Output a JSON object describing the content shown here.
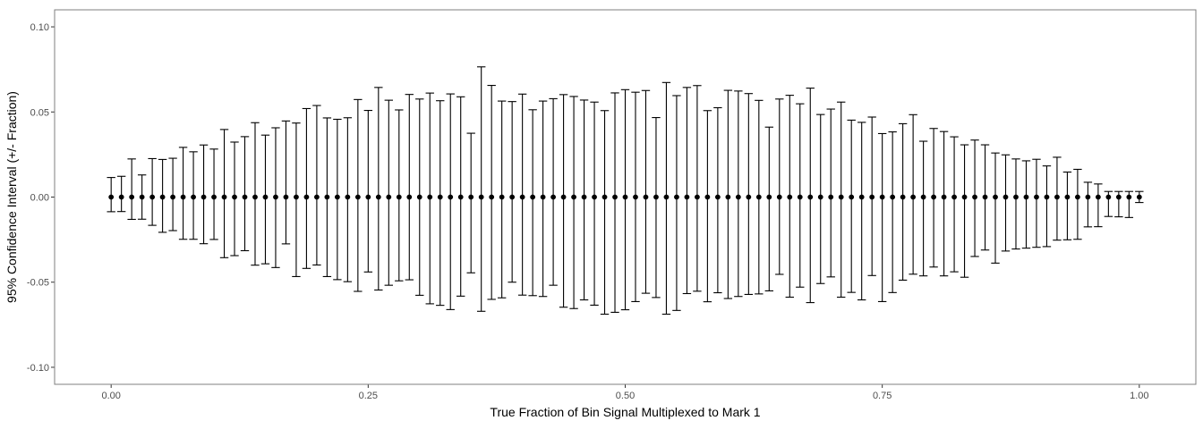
{
  "chart_data": {
    "type": "scatter",
    "title": "",
    "xlabel": "True Fraction of Bin Signal Multiplexed to Mark 1",
    "ylabel": "95% Confidence Interval (+/- Fraction)",
    "xlim": [
      -0.055,
      1.055
    ],
    "ylim": [
      -0.11,
      0.11
    ],
    "grid": false,
    "legend": "none",
    "x_ticks": [
      0.0,
      0.25,
      0.5,
      0.75,
      1.0
    ],
    "x_tick_labels": [
      "0.00",
      "0.25",
      "0.50",
      "0.75",
      "1.00"
    ],
    "y_ticks": [
      -0.1,
      -0.05,
      0.0,
      0.05,
      0.1
    ],
    "y_tick_labels": [
      "-0.10",
      "-0.05",
      "0.00",
      "0.05",
      "0.10"
    ],
    "colors": {
      "points": "#000000",
      "errorbars": "#000000",
      "panel_border": "#7f7f7f",
      "background": "#ffffff"
    },
    "x": [
      0.0,
      0.01,
      0.02,
      0.03,
      0.04,
      0.05,
      0.06,
      0.07,
      0.08,
      0.09,
      0.1,
      0.11,
      0.12,
      0.13,
      0.14,
      0.15,
      0.16,
      0.17,
      0.18,
      0.19,
      0.2,
      0.21,
      0.22,
      0.23,
      0.24,
      0.25,
      0.26,
      0.27,
      0.28,
      0.29,
      0.3,
      0.31,
      0.32,
      0.33,
      0.34,
      0.35,
      0.36,
      0.37,
      0.38,
      0.39,
      0.4,
      0.41,
      0.42,
      0.43,
      0.44,
      0.45,
      0.46,
      0.47,
      0.48,
      0.49,
      0.5,
      0.51,
      0.52,
      0.53,
      0.54,
      0.55,
      0.56,
      0.57,
      0.58,
      0.59,
      0.6,
      0.61,
      0.62,
      0.63,
      0.64,
      0.65,
      0.66,
      0.67,
      0.68,
      0.69,
      0.7,
      0.71,
      0.72,
      0.73,
      0.74,
      0.75,
      0.76,
      0.77,
      0.78,
      0.79,
      0.8,
      0.81,
      0.82,
      0.83,
      0.84,
      0.85,
      0.86,
      0.87,
      0.88,
      0.89,
      0.9,
      0.91,
      0.92,
      0.93,
      0.94,
      0.95,
      0.96,
      0.97,
      0.98,
      0.99,
      1.0
    ],
    "y": [
      0,
      0,
      0,
      0,
      0,
      0,
      0,
      0,
      0,
      0,
      0,
      0,
      0,
      0,
      0,
      0,
      0,
      0,
      0,
      0,
      0,
      0,
      0,
      0,
      0,
      0,
      0,
      0,
      0,
      0,
      0,
      0,
      0,
      0,
      0,
      0,
      0,
      0,
      0,
      0,
      0,
      0,
      0,
      0,
      0,
      0,
      0,
      0,
      0,
      0,
      0,
      0,
      0,
      0,
      0,
      0,
      0,
      0,
      0,
      0,
      0,
      0,
      0,
      0,
      0,
      0,
      0,
      0,
      0,
      0,
      0,
      0,
      0,
      0,
      0,
      0,
      0,
      0,
      0,
      0,
      0,
      0,
      0,
      0,
      0,
      0,
      0,
      0,
      0,
      0,
      0,
      0,
      0,
      0,
      0,
      0,
      0,
      0,
      0,
      0,
      0
    ],
    "ymax": [
      0.0115,
      0.0122,
      0.0224,
      0.013,
      0.0226,
      0.0221,
      0.0228,
      0.0292,
      0.0266,
      0.0306,
      0.0282,
      0.0397,
      0.0323,
      0.0355,
      0.0437,
      0.0364,
      0.0407,
      0.0447,
      0.0435,
      0.052,
      0.0538,
      0.0465,
      0.0457,
      0.0466,
      0.0573,
      0.0509,
      0.0644,
      0.0569,
      0.0512,
      0.0603,
      0.0576,
      0.0611,
      0.0566,
      0.0606,
      0.0589,
      0.0375,
      0.0765,
      0.0656,
      0.0564,
      0.0561,
      0.0605,
      0.0513,
      0.0564,
      0.0578,
      0.0602,
      0.0591,
      0.057,
      0.0558,
      0.0508,
      0.0612,
      0.0631,
      0.0616,
      0.0626,
      0.0467,
      0.0673,
      0.0596,
      0.0644,
      0.0655,
      0.0508,
      0.0525,
      0.0627,
      0.0623,
      0.0608,
      0.0568,
      0.0411,
      0.0576,
      0.0598,
      0.0548,
      0.064,
      0.0485,
      0.0517,
      0.0558,
      0.0452,
      0.0439,
      0.047,
      0.0373,
      0.0383,
      0.0431,
      0.0484,
      0.0328,
      0.0403,
      0.0385,
      0.0354,
      0.0307,
      0.0335,
      0.0307,
      0.0259,
      0.0248,
      0.0224,
      0.0213,
      0.0222,
      0.0183,
      0.0234,
      0.0147,
      0.0163,
      0.0087,
      0.0077,
      0.0033,
      0.0033,
      0.0033,
      0.0033
    ],
    "ymin": [
      -0.0086,
      -0.0085,
      -0.0131,
      -0.013,
      -0.0166,
      -0.0207,
      -0.0197,
      -0.0248,
      -0.0248,
      -0.0274,
      -0.0249,
      -0.0356,
      -0.0344,
      -0.0315,
      -0.04,
      -0.0392,
      -0.0414,
      -0.0275,
      -0.0467,
      -0.0419,
      -0.0399,
      -0.0467,
      -0.0485,
      -0.0497,
      -0.0554,
      -0.044,
      -0.0546,
      -0.0518,
      -0.0492,
      -0.0486,
      -0.0577,
      -0.0627,
      -0.0636,
      -0.0661,
      -0.0582,
      -0.0445,
      -0.0671,
      -0.0601,
      -0.0592,
      -0.05,
      -0.0576,
      -0.0579,
      -0.0584,
      -0.0518,
      -0.0647,
      -0.0655,
      -0.0604,
      -0.0635,
      -0.0688,
      -0.0677,
      -0.0662,
      -0.0614,
      -0.0565,
      -0.059,
      -0.0688,
      -0.0666,
      -0.0567,
      -0.0553,
      -0.0615,
      -0.0562,
      -0.0596,
      -0.0584,
      -0.0572,
      -0.0569,
      -0.0551,
      -0.0454,
      -0.0588,
      -0.0529,
      -0.062,
      -0.0508,
      -0.0469,
      -0.0588,
      -0.056,
      -0.0604,
      -0.0461,
      -0.0614,
      -0.0561,
      -0.0488,
      -0.0453,
      -0.0463,
      -0.0411,
      -0.0463,
      -0.0439,
      -0.0471,
      -0.0349,
      -0.0311,
      -0.0388,
      -0.0317,
      -0.0305,
      -0.03,
      -0.0295,
      -0.0291,
      -0.0253,
      -0.0251,
      -0.0248,
      -0.0175,
      -0.0174,
      -0.0114,
      -0.0116,
      -0.012,
      -0.0032
    ]
  }
}
